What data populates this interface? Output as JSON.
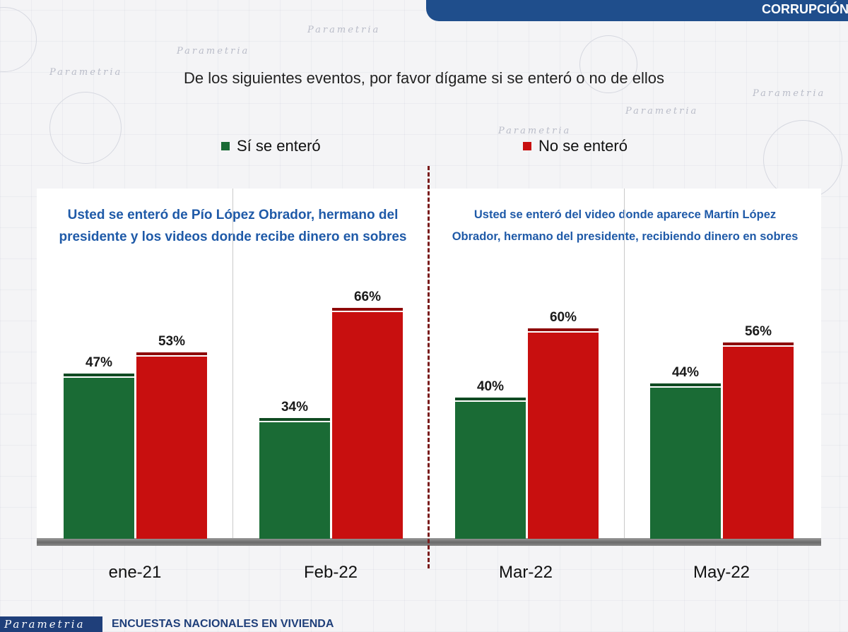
{
  "header": {
    "tag": "CORRUPCIÓN"
  },
  "question": "De los siguientes eventos, por favor dígame si se enteró o no de ellos",
  "legend": [
    {
      "label": "Sí se enteró",
      "color": "#1a6b35"
    },
    {
      "label": "No se enteró",
      "color": "#c80f0f"
    }
  ],
  "panels": [
    {
      "title_line1": "Usted se enteró de Pío López Obrador, hermano del",
      "title_line2": "presidente y los videos donde recibe dinero en sobres"
    },
    {
      "title_line1": "Usted se enteró del video donde aparece Martín López",
      "title_line2": "Obrador, hermano del presidente, recibiendo dinero en sobres"
    }
  ],
  "chart_data": {
    "type": "bar",
    "title": "De los siguientes eventos, por favor dígame si se enteró o no de ellos",
    "categories": [
      "ene-21",
      "Feb-22",
      "Mar-22",
      "May-22"
    ],
    "series": [
      {
        "name": "Sí se enteró",
        "color": "#1a6b35",
        "values": [
          47,
          34,
          40,
          44
        ],
        "labels": [
          "47%",
          "34%",
          "40%",
          "44%"
        ]
      },
      {
        "name": "No se enteró",
        "color": "#c80f0f",
        "values": [
          53,
          66,
          60,
          56
        ],
        "labels": [
          "53%",
          "66%",
          "60%",
          "56%"
        ]
      }
    ],
    "ylim": [
      0,
      100
    ],
    "xlabel": "",
    "ylabel": "",
    "grid": false,
    "legend_position": "top"
  },
  "footer": {
    "brand": "Parametria",
    "text": "ENCUESTAS NACIONALES EN VIVIENDA"
  }
}
